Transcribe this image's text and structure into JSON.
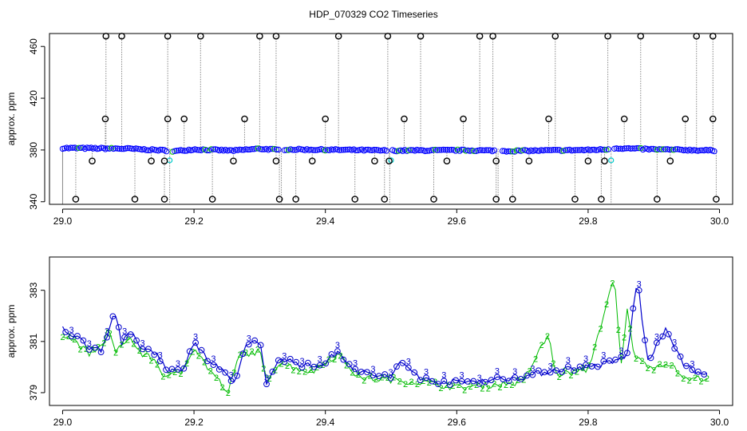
{
  "chart_data": [
    {
      "type": "line",
      "title": "HDP_070329  CO2 Timeseries",
      "xlabel": "",
      "ylabel": "approx. ppm",
      "xlim": [
        28.98,
        30.02
      ],
      "ylim": [
        338,
        470
      ],
      "xticks": [
        "29.0",
        "29.2",
        "29.4",
        "29.6",
        "29.8",
        "30.0"
      ],
      "xtick_values": [
        29.0,
        29.2,
        29.4,
        29.6,
        29.8,
        30.0
      ],
      "yticks": [
        "340",
        "380",
        "420",
        "460"
      ],
      "ytick_values": [
        340,
        380,
        420,
        460
      ],
      "grid": false,
      "colors": {
        "baseline": "#0000ff",
        "spikes": "#000000",
        "low_marks": "#00cccc",
        "flag2": "#00bb00",
        "trace": "#888888"
      },
      "baseline": {
        "x": [
          29.0,
          29.1,
          29.16,
          29.17,
          29.2,
          29.26,
          29.3,
          29.33,
          29.34,
          29.44,
          29.5,
          29.6,
          29.66,
          29.67,
          29.8,
          29.83,
          29.84,
          29.9,
          30.0
        ],
        "y": [
          381.5,
          381.0,
          379.5,
          379.0,
          380.5,
          379.5,
          381.0,
          380.0,
          380.5,
          380.0,
          379.5,
          379.8,
          379.5,
          379.2,
          380.0,
          380.5,
          381.5,
          380.5,
          379.5
        ]
      },
      "spikes_high": {
        "x": [
          29.066,
          29.09,
          29.16,
          29.21,
          29.3,
          29.325,
          29.42,
          29.495,
          29.545,
          29.635,
          29.655,
          29.75,
          29.83,
          29.88,
          29.965,
          29.99
        ],
        "y": 468
      },
      "spikes_mid": {
        "x": [
          29.065,
          29.16,
          29.185,
          29.277,
          29.4,
          29.52,
          29.61,
          29.74,
          29.855,
          29.948,
          29.99
        ],
        "y": 404
      },
      "spikes_low": {
        "x": [
          29.045,
          29.135,
          29.155,
          29.26,
          29.325,
          29.38,
          29.475,
          29.497,
          29.585,
          29.66,
          29.71,
          29.8,
          29.825,
          29.925
        ],
        "y": 371.5
      },
      "spikes_bottom": {
        "x": [
          29.02,
          29.11,
          29.155,
          29.228,
          29.33,
          29.355,
          29.445,
          29.49,
          29.565,
          29.66,
          29.685,
          29.78,
          29.82,
          29.905,
          29.995
        ],
        "y": 342
      }
    },
    {
      "type": "line",
      "title": "",
      "xlabel": "",
      "ylabel": "approx. ppm",
      "xlim": [
        28.98,
        30.02
      ],
      "ylim": [
        378.5,
        384.3
      ],
      "xticks": [
        "29.0",
        "29.2",
        "29.4",
        "29.6",
        "29.8",
        "30.0"
      ],
      "xtick_values": [
        29.0,
        29.2,
        29.4,
        29.6,
        29.8,
        30.0
      ],
      "yticks": [
        "379",
        "381",
        "383"
      ],
      "ytick_values": [
        379,
        381,
        383
      ],
      "grid": false,
      "marker_labels": [
        "2",
        "3"
      ],
      "colors": {
        "series2": "#00bb00",
        "series3": "#0000cc"
      },
      "series": [
        {
          "x": [
            29.0,
            29.02,
            29.04,
            29.06,
            29.07,
            29.08,
            29.1,
            29.12,
            29.14,
            29.15,
            29.16,
            29.18,
            29.2,
            29.22,
            29.24,
            29.25,
            29.27,
            29.3,
            29.31,
            29.33,
            29.35,
            29.38,
            29.4,
            29.42,
            29.45,
            29.5,
            29.55,
            29.6,
            29.65,
            29.7,
            29.74,
            29.75,
            29.8,
            29.84,
            29.85,
            29.86,
            29.87,
            29.88,
            29.9,
            29.92,
            29.95,
            29.98
          ],
          "y": [
            381.3,
            381.0,
            380.5,
            380.8,
            381.6,
            380.5,
            381.2,
            380.5,
            380.3,
            379.8,
            379.6,
            379.8,
            380.8,
            380.0,
            379.4,
            378.9,
            380.5,
            380.6,
            379.5,
            380.2,
            380.0,
            379.8,
            380.2,
            380.5,
            379.6,
            379.5,
            379.4,
            379.2,
            379.3,
            379.4,
            381.3,
            379.7,
            379.9,
            383.5,
            380.0,
            382.3,
            380.5,
            380.2,
            380.0,
            380.2,
            379.5,
            379.6
          ]
        },
        {
          "x": [
            29.0,
            29.02,
            29.04,
            29.06,
            29.08,
            29.09,
            29.1,
            29.12,
            29.14,
            29.16,
            29.18,
            29.2,
            29.22,
            29.24,
            29.26,
            29.28,
            29.3,
            29.31,
            29.33,
            29.35,
            29.38,
            29.4,
            29.42,
            29.45,
            29.5,
            29.515,
            29.55,
            29.6,
            29.65,
            29.7,
            29.75,
            29.8,
            29.84,
            29.86,
            29.875,
            29.89,
            29.92,
            29.94,
            29.96,
            29.98
          ],
          "y": [
            381.5,
            381.2,
            380.8,
            380.7,
            382.2,
            380.8,
            381.4,
            380.8,
            380.6,
            379.9,
            379.8,
            381.0,
            380.3,
            379.9,
            379.3,
            380.9,
            381.1,
            379.2,
            380.4,
            380.2,
            380.0,
            380.2,
            380.6,
            379.8,
            379.6,
            380.2,
            379.5,
            379.4,
            379.5,
            379.6,
            379.9,
            380.0,
            380.2,
            380.5,
            383.5,
            380.2,
            381.5,
            380.3,
            379.8,
            379.7
          ]
        }
      ]
    }
  ]
}
